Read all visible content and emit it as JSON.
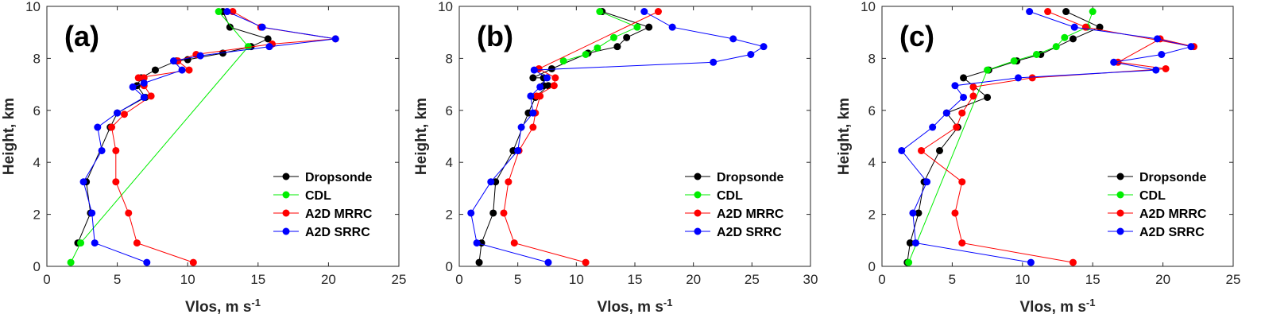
{
  "chart_data": [
    {
      "type": "line",
      "panel_label": "(a)",
      "xlabel": "Vlos, m s",
      "xlabel_sup": "-1",
      "ylabel": "Height, km",
      "xlim": [
        0,
        25
      ],
      "ylim": [
        0,
        10
      ],
      "xticks": [
        0,
        5,
        10,
        15,
        20,
        25
      ],
      "yticks": [
        0,
        2,
        4,
        6,
        8,
        10
      ],
      "legend": "bottom-right",
      "series": [
        {
          "name": "Dropsonde",
          "color": "#000000",
          "x": [
            2.2,
            3.1,
            2.8,
            4.5,
            5.0,
            7.0,
            6.4,
            6.7,
            7.7,
            9.2,
            10.0,
            12.5,
            14.5,
            15.7,
            13.0,
            12.5
          ],
          "y": [
            0.9,
            2.05,
            3.25,
            5.35,
            5.9,
            6.5,
            6.95,
            7.25,
            7.55,
            7.9,
            7.95,
            8.2,
            8.45,
            8.75,
            9.2,
            9.8
          ]
        },
        {
          "name": "CDL",
          "color": "#00ee00",
          "x": [
            1.7,
            2.4,
            14.3,
            12.2
          ],
          "y": [
            0.15,
            0.9,
            8.45,
            9.8
          ]
        },
        {
          "name": "A2D MRRC",
          "color": "#ff0000",
          "x": [
            10.4,
            6.4,
            5.8,
            4.9,
            4.9,
            4.6,
            5.5,
            7.4,
            6.9,
            6.9,
            6.5,
            10.1,
            9.3,
            10.6,
            16.0,
            20.5,
            15.2,
            13.2
          ],
          "y": [
            0.15,
            0.9,
            2.05,
            3.25,
            4.45,
            5.35,
            5.85,
            6.55,
            6.95,
            7.25,
            7.25,
            7.55,
            7.9,
            8.15,
            8.55,
            8.75,
            9.2,
            9.8
          ]
        },
        {
          "name": "A2D SRRC",
          "color": "#0000ff",
          "x": [
            7.1,
            3.4,
            3.2,
            2.6,
            3.9,
            3.6,
            5.0,
            6.9,
            6.1,
            6.9,
            9.6,
            9.0,
            10.9,
            15.8,
            20.5,
            15.3,
            12.8
          ],
          "y": [
            0.15,
            0.9,
            2.05,
            3.25,
            4.45,
            5.35,
            5.9,
            6.5,
            6.9,
            7.05,
            7.55,
            7.9,
            8.1,
            8.45,
            8.75,
            9.2,
            9.8
          ]
        }
      ]
    },
    {
      "type": "line",
      "panel_label": "(b)",
      "xlabel": "Vlos, m s",
      "xlabel_sup": "-1",
      "ylabel": "Height, km",
      "xlim": [
        0,
        30
      ],
      "ylim": [
        0,
        10
      ],
      "xticks": [
        0,
        5,
        10,
        15,
        20,
        25,
        30
      ],
      "yticks": [
        0,
        2,
        4,
        6,
        8,
        10
      ],
      "legend": "bottom-right",
      "series": [
        {
          "name": "Dropsonde",
          "color": "#000000",
          "x": [
            1.7,
            1.9,
            2.9,
            3.1,
            4.6,
            5.9,
            6.5,
            7.6,
            7.2,
            7.2,
            6.3,
            7.9,
            11.0,
            13.5,
            14.3,
            16.2,
            12.2
          ],
          "y": [
            0.15,
            0.9,
            2.05,
            3.25,
            4.45,
            5.9,
            6.5,
            6.95,
            6.95,
            7.25,
            7.25,
            7.6,
            8.2,
            8.45,
            8.8,
            9.2,
            9.8
          ]
        },
        {
          "name": "CDL",
          "color": "#00ee00",
          "x": [
            8.9,
            10.8,
            11.8,
            13.2,
            15.2,
            12.0
          ],
          "y": [
            7.9,
            8.15,
            8.4,
            8.8,
            9.2,
            9.8
          ]
        },
        {
          "name": "A2D MRRC",
          "color": "#ff0000",
          "x": [
            10.8,
            4.7,
            3.8,
            4.2,
            5.1,
            6.3,
            6.5,
            6.9,
            6.6,
            8.1,
            8.2,
            6.8,
            17.0
          ],
          "y": [
            0.15,
            0.9,
            2.05,
            3.25,
            4.45,
            5.35,
            5.9,
            6.55,
            6.55,
            6.95,
            7.25,
            7.6,
            9.8
          ]
        },
        {
          "name": "A2D SRRC",
          "color": "#0000ff",
          "x": [
            7.6,
            1.5,
            1.0,
            2.7,
            5.0,
            5.3,
            6.3,
            6.1,
            6.9,
            7.5,
            6.4,
            21.7,
            24.9,
            26.0,
            23.4,
            18.2,
            15.8
          ],
          "y": [
            0.15,
            0.9,
            2.05,
            3.25,
            4.45,
            5.35,
            5.9,
            6.55,
            6.9,
            7.25,
            7.55,
            7.85,
            8.15,
            8.45,
            8.75,
            9.2,
            9.8
          ]
        }
      ]
    },
    {
      "type": "line",
      "panel_label": "(c)",
      "xlabel": "Vlos, m s",
      "xlabel_sup": "-1",
      "ylabel": "Height, km",
      "xlim": [
        0,
        25
      ],
      "ylim": [
        0,
        10
      ],
      "xticks": [
        0,
        5,
        10,
        15,
        20,
        25
      ],
      "yticks": [
        0,
        2,
        4,
        6,
        8,
        10
      ],
      "legend": "bottom-right",
      "series": [
        {
          "name": "Dropsonde",
          "color": "#000000",
          "x": [
            1.8,
            2.0,
            2.6,
            3.0,
            4.1,
            5.4,
            4.6,
            7.5,
            5.8,
            7.6,
            9.6,
            11.3,
            13.6,
            15.5,
            13.1
          ],
          "y": [
            0.15,
            0.9,
            2.05,
            3.25,
            4.45,
            5.35,
            5.9,
            6.5,
            7.25,
            7.55,
            7.9,
            8.15,
            8.75,
            9.2,
            9.8
          ]
        },
        {
          "name": "CDL",
          "color": "#00ee00",
          "x": [
            1.9,
            7.5,
            9.4,
            11.0,
            12.4,
            13.0,
            14.6,
            15.0
          ],
          "y": [
            0.15,
            7.55,
            7.9,
            8.15,
            8.45,
            8.8,
            9.2,
            9.8
          ]
        },
        {
          "name": "A2D MRRC",
          "color": "#ff0000",
          "x": [
            13.6,
            5.7,
            5.2,
            5.7,
            2.8,
            5.3,
            5.7,
            6.5,
            6.5,
            10.7,
            20.2,
            16.8,
            19.8,
            22.2,
            14.5,
            11.8
          ],
          "y": [
            0.15,
            0.9,
            2.05,
            3.25,
            4.45,
            5.35,
            5.9,
            6.55,
            6.9,
            7.25,
            7.6,
            7.85,
            8.75,
            8.45,
            9.2,
            9.8
          ]
        },
        {
          "name": "A2D SRRC",
          "color": "#0000ff",
          "x": [
            10.6,
            2.4,
            2.2,
            3.2,
            1.4,
            3.6,
            4.6,
            5.8,
            5.2,
            9.7,
            19.5,
            16.5,
            19.9,
            22.0,
            19.6,
            13.7,
            10.5
          ],
          "y": [
            0.15,
            0.9,
            2.05,
            3.25,
            4.45,
            5.35,
            5.9,
            6.5,
            6.95,
            7.25,
            7.55,
            7.85,
            8.15,
            8.45,
            8.75,
            9.2,
            9.8
          ]
        }
      ]
    }
  ]
}
